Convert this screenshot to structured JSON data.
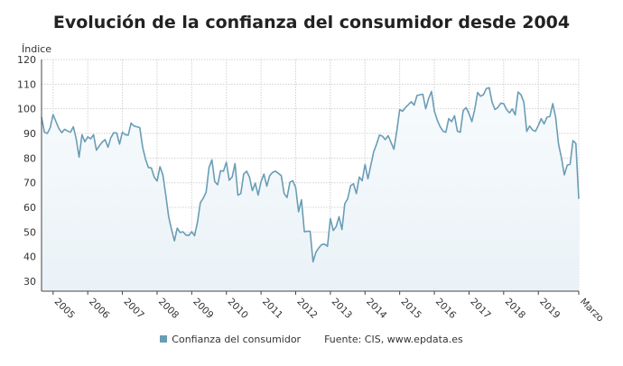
{
  "title": "Evolución de la confianza del consumidor desde 2004",
  "legend": {
    "label": "Confianza del consumidor",
    "source": "Fuente: CIS, www.epdata.es"
  },
  "colors": {
    "line": "#6a9db5",
    "fill_top": "#f7fbfd",
    "fill_bottom": "#eaf2f7",
    "grid": "#d0d0d0"
  },
  "chart_data": {
    "type": "area",
    "title": "Evolución de la confianza del consumidor desde 2004",
    "ylabel": "Índice",
    "xlabel": "",
    "ylim": [
      26,
      120
    ],
    "yticks": [
      30,
      40,
      50,
      60,
      70,
      80,
      90,
      100,
      110,
      120
    ],
    "xticks": [
      {
        "label": "2005",
        "date": "2005-01"
      },
      {
        "label": "2006",
        "date": "2006-01"
      },
      {
        "label": "2007",
        "date": "2007-01"
      },
      {
        "label": "2008",
        "date": "2008-01"
      },
      {
        "label": "2009",
        "date": "2009-01"
      },
      {
        "label": "2010",
        "date": "2010-01"
      },
      {
        "label": "2011",
        "date": "2011-01"
      },
      {
        "label": "2012",
        "date": "2012-01"
      },
      {
        "label": "2013",
        "date": "2013-01"
      },
      {
        "label": "2014",
        "date": "2014-01"
      },
      {
        "label": "2015",
        "date": "2015-01"
      },
      {
        "label": "2016",
        "date": "2016-01"
      },
      {
        "label": "2017",
        "date": "2017-01"
      },
      {
        "label": "2018",
        "date": "2018-01"
      },
      {
        "label": "2019",
        "date": "2019-01"
      },
      {
        "label": "Marzo",
        "date": "2020-03"
      }
    ],
    "grid": true,
    "legend_position": "bottom",
    "x_start": "2004-09",
    "x_end": "2020-03",
    "x_step": "month",
    "series": [
      {
        "name": "Confianza del consumidor",
        "values": [
          96.6,
          90.5,
          90,
          92.3,
          97.6,
          94.8,
          92,
          90.3,
          91.7,
          91,
          90.5,
          92.7,
          87.8,
          80.4,
          89.5,
          86.6,
          88.6,
          87.8,
          89.5,
          83.2,
          85,
          86.5,
          87.5,
          84.4,
          88.3,
          90.3,
          90.2,
          85.7,
          90.5,
          89.5,
          89.3,
          94.2,
          93,
          92.7,
          92.4,
          84.4,
          79.5,
          76.2,
          76,
          72.3,
          70.7,
          76.5,
          73.2,
          65,
          56.2,
          51,
          46.4,
          51.6,
          49.8,
          50.1,
          48.8,
          48.6,
          50.1,
          48.5,
          54,
          61.9,
          63.7,
          66.2,
          76.2,
          79.3,
          70.4,
          69.2,
          74.9,
          74.7,
          78.3,
          71,
          72.3,
          77.8,
          65,
          65.6,
          73.5,
          74.7,
          72.3,
          66.8,
          69.8,
          65,
          70.4,
          73.5,
          68.6,
          72.9,
          74.2,
          74.7,
          73.8,
          72.9,
          65.6,
          64,
          70.2,
          70.8,
          68,
          58.2,
          63.1,
          50.1,
          50.3,
          50.3,
          37.9,
          41.8,
          43.6,
          44.9,
          45.1,
          44.2,
          55.4,
          50.6,
          52.2,
          56.2,
          51,
          61.5,
          63.5,
          68.8,
          69.6,
          65.6,
          72.3,
          70.8,
          77.4,
          71.6,
          77.1,
          82.6,
          85.7,
          89.3,
          88.9,
          87.5,
          89.1,
          86.3,
          83.6,
          91.1,
          99.7,
          99,
          100.5,
          101.7,
          102.9,
          101.5,
          105.4,
          105.7,
          105.9,
          100,
          104.2,
          107,
          99,
          95.4,
          92.7,
          90.9,
          90.5,
          96,
          94.8,
          97.2,
          90.9,
          90.5,
          99.3,
          100.5,
          98.1,
          94.8,
          99.7,
          106.6,
          105.1,
          105.7,
          108.2,
          108.6,
          102.7,
          99.7,
          100.5,
          102.3,
          102.1,
          99.7,
          98.4,
          99.9,
          97.5,
          106.8,
          105.7,
          102.7,
          90.8,
          93,
          91.4,
          90.9,
          93.2,
          96,
          93.9,
          96.6,
          96.9,
          102.1,
          96.6,
          85.7,
          80.2,
          73.2,
          77.1,
          77.5,
          87.1,
          85.9,
          63.4
        ]
      }
    ]
  }
}
